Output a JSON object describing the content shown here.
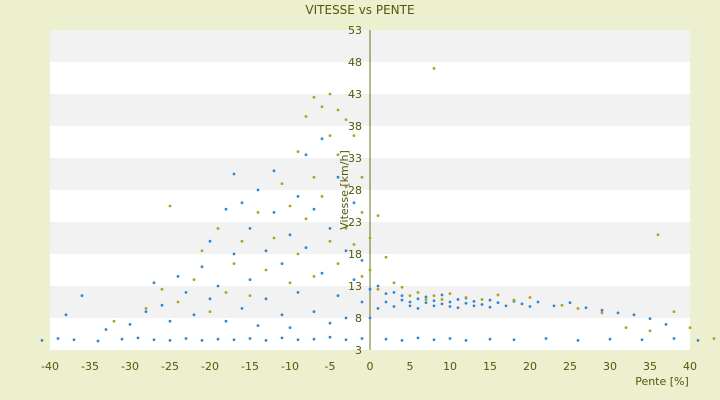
{
  "chart_data": {
    "type": "scatter",
    "title": "VITESSE vs PENTE",
    "xlabel": "Pente [%]",
    "ylabel": "Vitesse [km/h]",
    "xlim": [
      -40,
      40
    ],
    "ylim": [
      3,
      53
    ],
    "x_ticks": [
      -40,
      -35,
      -30,
      -25,
      -20,
      -15,
      -10,
      -5,
      0,
      5,
      10,
      15,
      20,
      25,
      30,
      35,
      40
    ],
    "y_ticks": [
      3,
      8,
      13,
      18,
      23,
      28,
      33,
      38,
      43,
      48,
      53
    ],
    "grid": "horizontal bands",
    "legend": "none",
    "colors": {
      "background": "#ecf0cf",
      "band_light": "#ffffff",
      "band_dark": "#f2f2f2",
      "series_blue": "#2e86d6",
      "series_olive": "#a9a51f",
      "text": "#4f5a08"
    },
    "series": [
      {
        "color": "#2e86d6",
        "points": [
          [
            -41,
            4.5
          ],
          [
            -39,
            4.8
          ],
          [
            -37,
            4.6
          ],
          [
            -34,
            4.4
          ],
          [
            -31,
            4.7
          ],
          [
            -29,
            4.9
          ],
          [
            -27,
            4.6
          ],
          [
            -25,
            4.5
          ],
          [
            -23,
            4.8
          ],
          [
            -21,
            4.5
          ],
          [
            -19,
            4.7
          ],
          [
            -17,
            4.6
          ],
          [
            -15,
            4.8
          ],
          [
            -13,
            4.5
          ],
          [
            -11,
            4.9
          ],
          [
            -9,
            4.6
          ],
          [
            -7,
            4.7
          ],
          [
            -5,
            5.0
          ],
          [
            -3,
            4.6
          ],
          [
            -1,
            4.8
          ],
          [
            2,
            4.7
          ],
          [
            4,
            4.5
          ],
          [
            6,
            4.9
          ],
          [
            8,
            4.6
          ],
          [
            10,
            4.8
          ],
          [
            12,
            4.5
          ],
          [
            15,
            4.7
          ],
          [
            18,
            4.6
          ],
          [
            22,
            4.8
          ],
          [
            26,
            4.5
          ],
          [
            30,
            4.7
          ],
          [
            34,
            4.6
          ],
          [
            38,
            4.8
          ],
          [
            41,
            4.5
          ],
          [
            -38,
            8.5
          ],
          [
            -36,
            11.5
          ],
          [
            -33,
            6.2
          ],
          [
            -28,
            9.0
          ],
          [
            -27,
            13.5
          ],
          [
            -26,
            10.0
          ],
          [
            -25,
            7.5
          ],
          [
            -24,
            14.5
          ],
          [
            -22,
            8.5
          ],
          [
            -21,
            16.0
          ],
          [
            -20,
            20.0
          ],
          [
            -20,
            11.0
          ],
          [
            -19,
            13.0
          ],
          [
            -18,
            7.5
          ],
          [
            -18,
            25.0
          ],
          [
            -17,
            30.5
          ],
          [
            -17,
            18.0
          ],
          [
            -16,
            9.5
          ],
          [
            -16,
            26.0
          ],
          [
            -15,
            22.0
          ],
          [
            -15,
            14.0
          ],
          [
            -14,
            6.8
          ],
          [
            -14,
            28.0
          ],
          [
            -13,
            18.5
          ],
          [
            -13,
            11.0
          ],
          [
            -12,
            24.5
          ],
          [
            -12,
            31.0
          ],
          [
            -11,
            8.5
          ],
          [
            -11,
            16.5
          ],
          [
            -10,
            21.0
          ],
          [
            -10,
            6.5
          ],
          [
            -9,
            27.0
          ],
          [
            -9,
            12.0
          ],
          [
            -8,
            33.5
          ],
          [
            -8,
            19.0
          ],
          [
            -7,
            9.0
          ],
          [
            -7,
            25.0
          ],
          [
            -6,
            15.0
          ],
          [
            -6,
            36.0
          ],
          [
            -5,
            7.2
          ],
          [
            -5,
            22.0
          ],
          [
            -4,
            30.0
          ],
          [
            -4,
            11.5
          ],
          [
            -3,
            18.5
          ],
          [
            -3,
            8.0
          ],
          [
            -2,
            14.0
          ],
          [
            -2,
            26.0
          ],
          [
            -1,
            10.5
          ],
          [
            -1,
            17.0
          ],
          [
            0,
            12.5
          ],
          [
            0,
            8.0
          ],
          [
            1,
            13.0
          ],
          [
            1,
            9.5
          ],
          [
            2,
            11.8
          ],
          [
            2,
            10.5
          ],
          [
            3,
            12.0
          ],
          [
            3,
            9.8
          ],
          [
            4,
            10.8
          ],
          [
            4,
            11.5
          ],
          [
            5,
            9.9
          ],
          [
            5,
            10.5
          ],
          [
            6,
            11.0
          ],
          [
            6,
            9.5
          ],
          [
            7,
            10.4
          ],
          [
            7,
            11.3
          ],
          [
            8,
            9.9
          ],
          [
            8,
            10.7
          ],
          [
            9,
            10.2
          ],
          [
            9,
            11.6
          ],
          [
            10,
            9.8
          ],
          [
            10,
            10.5
          ],
          [
            11,
            10.9
          ],
          [
            11,
            9.6
          ],
          [
            12,
            10.3
          ],
          [
            12,
            11.1
          ],
          [
            13,
            9.9
          ],
          [
            13,
            10.6
          ],
          [
            14,
            10.1
          ],
          [
            15,
            10.8
          ],
          [
            15,
            9.7
          ],
          [
            16,
            10.4
          ],
          [
            17,
            9.9
          ],
          [
            18,
            10.6
          ],
          [
            19,
            10.2
          ],
          [
            20,
            9.8
          ],
          [
            21,
            10.5
          ],
          [
            23,
            9.9
          ],
          [
            25,
            10.4
          ],
          [
            27,
            9.6
          ],
          [
            29,
            9.2
          ],
          [
            31,
            8.8
          ],
          [
            33,
            8.5
          ],
          [
            35,
            7.9
          ],
          [
            37,
            7.0
          ],
          [
            -30,
            7.0
          ],
          [
            -23,
            12.0
          ]
        ]
      },
      {
        "color": "#a9a51f",
        "points": [
          [
            -32,
            7.5
          ],
          [
            -28,
            9.5
          ],
          [
            -26,
            12.5
          ],
          [
            -25,
            25.5
          ],
          [
            -24,
            10.5
          ],
          [
            -22,
            14.0
          ],
          [
            -21,
            18.5
          ],
          [
            -20,
            9.0
          ],
          [
            -19,
            22.0
          ],
          [
            -18,
            12.0
          ],
          [
            -17,
            16.5
          ],
          [
            -16,
            20.0
          ],
          [
            -15,
            11.5
          ],
          [
            -14,
            24.5
          ],
          [
            -13,
            15.5
          ],
          [
            -12,
            20.5
          ],
          [
            -11,
            29.0
          ],
          [
            -10,
            13.5
          ],
          [
            -10,
            25.5
          ],
          [
            -9,
            34.0
          ],
          [
            -9,
            18.0
          ],
          [
            -8,
            39.5
          ],
          [
            -8,
            23.5
          ],
          [
            -7,
            42.5
          ],
          [
            -7,
            30.0
          ],
          [
            -7,
            14.5
          ],
          [
            -6,
            41.0
          ],
          [
            -6,
            27.0
          ],
          [
            -5,
            43.0
          ],
          [
            -5,
            36.5
          ],
          [
            -5,
            20.0
          ],
          [
            -4,
            40.5
          ],
          [
            -4,
            33.5
          ],
          [
            -4,
            16.5
          ],
          [
            -3,
            39.0
          ],
          [
            -3,
            28.5
          ],
          [
            -3,
            22.0
          ],
          [
            -2,
            36.5
          ],
          [
            -2,
            19.5
          ],
          [
            -1,
            30.0
          ],
          [
            -1,
            24.5
          ],
          [
            -1,
            14.5
          ],
          [
            0,
            20.5
          ],
          [
            0,
            15.5
          ],
          [
            1,
            24.0
          ],
          [
            1,
            12.5
          ],
          [
            2,
            17.5
          ],
          [
            3,
            13.5
          ],
          [
            4,
            12.8
          ],
          [
            5,
            11.5
          ],
          [
            6,
            12.0
          ],
          [
            7,
            10.9
          ],
          [
            8,
            47.0
          ],
          [
            8,
            11.5
          ],
          [
            9,
            10.9
          ],
          [
            10,
            11.8
          ],
          [
            12,
            11.2
          ],
          [
            14,
            10.9
          ],
          [
            16,
            11.6
          ],
          [
            18,
            10.8
          ],
          [
            20,
            11.2
          ],
          [
            24,
            10.0
          ],
          [
            26,
            9.5
          ],
          [
            29,
            8.8
          ],
          [
            32,
            6.5
          ],
          [
            35,
            6.0
          ],
          [
            36,
            21.0
          ],
          [
            38,
            9.0
          ],
          [
            40,
            6.5
          ],
          [
            43,
            4.8
          ]
        ]
      }
    ]
  }
}
